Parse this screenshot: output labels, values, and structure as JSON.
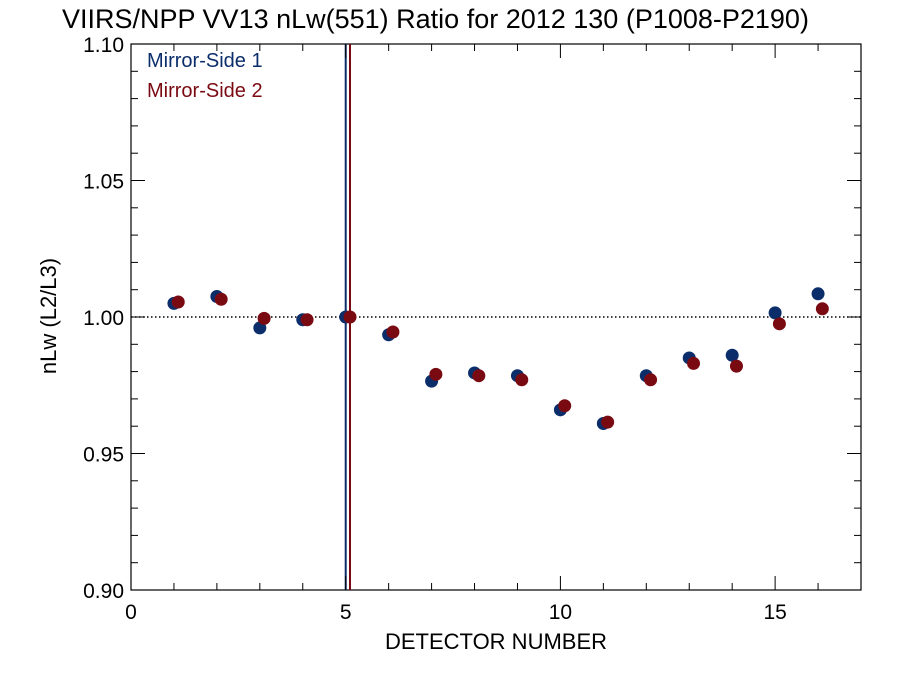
{
  "chart_data": {
    "type": "scatter",
    "title": "VIIRS/NPP VV13 nLw(551) Ratio for 2012 130 (P1008-P2190)",
    "xlabel": "DETECTOR NUMBER",
    "ylabel": "nLw (L2/L3)",
    "xlim": [
      0,
      17
    ],
    "ylim": [
      0.9,
      1.1
    ],
    "xticks": [
      0,
      5,
      10,
      15
    ],
    "xtick_labels": [
      "0",
      "5",
      "10",
      "15"
    ],
    "yticks": [
      0.9,
      0.95,
      1.0,
      1.05,
      1.1
    ],
    "ytick_labels": [
      "0.90",
      "0.95",
      "1.00",
      "1.05",
      "1.10"
    ],
    "reference_line": {
      "y": 1.0,
      "style": "dotted"
    },
    "vertical_lines": [
      {
        "x": 5.0,
        "color": "#0b2e6b"
      },
      {
        "x": 5.1,
        "color": "#7a0a12"
      }
    ],
    "legend_position": "top-left",
    "series": [
      {
        "name": "Mirror-Side 1",
        "color": "#0b2e6b",
        "x": [
          1,
          2,
          3,
          4,
          5,
          6,
          7,
          8,
          9,
          10,
          11,
          12,
          13,
          14,
          15,
          16
        ],
        "y": [
          1.005,
          1.0075,
          0.996,
          0.999,
          1.0,
          0.9935,
          0.9765,
          0.9795,
          0.9785,
          0.966,
          0.961,
          0.9785,
          0.985,
          0.986,
          1.0015,
          1.0085
        ]
      },
      {
        "name": "Mirror-Side 2",
        "color": "#7a0a12",
        "x": [
          1.1,
          2.1,
          3.1,
          4.1,
          5.1,
          6.1,
          7.1,
          8.1,
          9.1,
          10.1,
          11.1,
          12.1,
          13.1,
          14.1,
          15.1,
          16.1
        ],
        "y": [
          1.0055,
          1.0065,
          0.9995,
          0.999,
          1.0,
          0.9945,
          0.979,
          0.9785,
          0.977,
          0.9675,
          0.9615,
          0.977,
          0.983,
          0.982,
          0.9975,
          1.003
        ]
      }
    ]
  }
}
